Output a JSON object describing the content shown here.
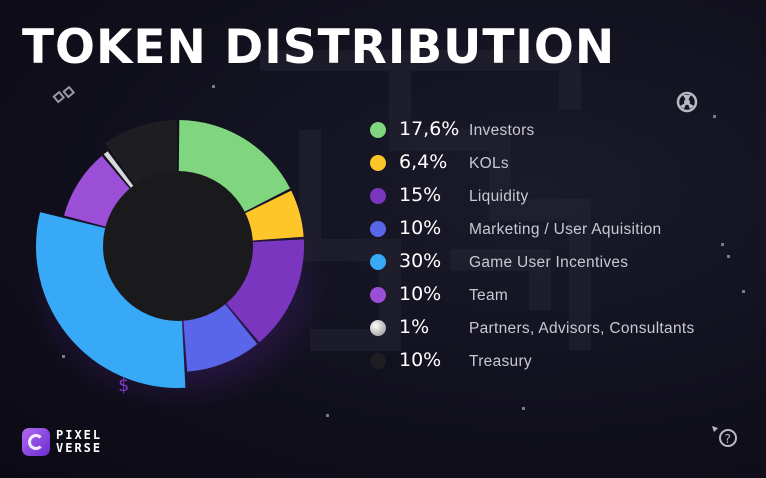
{
  "title": "TOKEN DISTRIBUTION",
  "brand": {
    "line1": "PIXEL",
    "line2": "VERSE"
  },
  "icons": {
    "top_left": "link-icon",
    "top_right": "radiation-icon",
    "bottom_left": "dollar-icon",
    "bottom_right": "question-icon",
    "brand": "pixelverse-logo-icon"
  },
  "chart_data": {
    "type": "pie",
    "categories": [
      "Investors",
      "KOLs",
      "Liquidity",
      "Marketing / User Aquisition",
      "Game User Incentives",
      "Team",
      "Partners, Advisors, Consultants",
      "Treasury"
    ],
    "values": [
      17.6,
      6.4,
      15,
      10,
      30,
      10,
      1,
      10
    ],
    "value_labels": [
      "17,6%",
      "6,4%",
      "15%",
      "10%",
      "30%",
      "10%",
      "1%",
      "10%"
    ],
    "colors": [
      "#7fd67e",
      "#ffc629",
      "#7b36bf",
      "#5a66ea",
      "#37a9f7",
      "#9b4fd6",
      "#d8d8dc",
      "#1d1d22"
    ],
    "donut": true,
    "legend_position": "right"
  }
}
